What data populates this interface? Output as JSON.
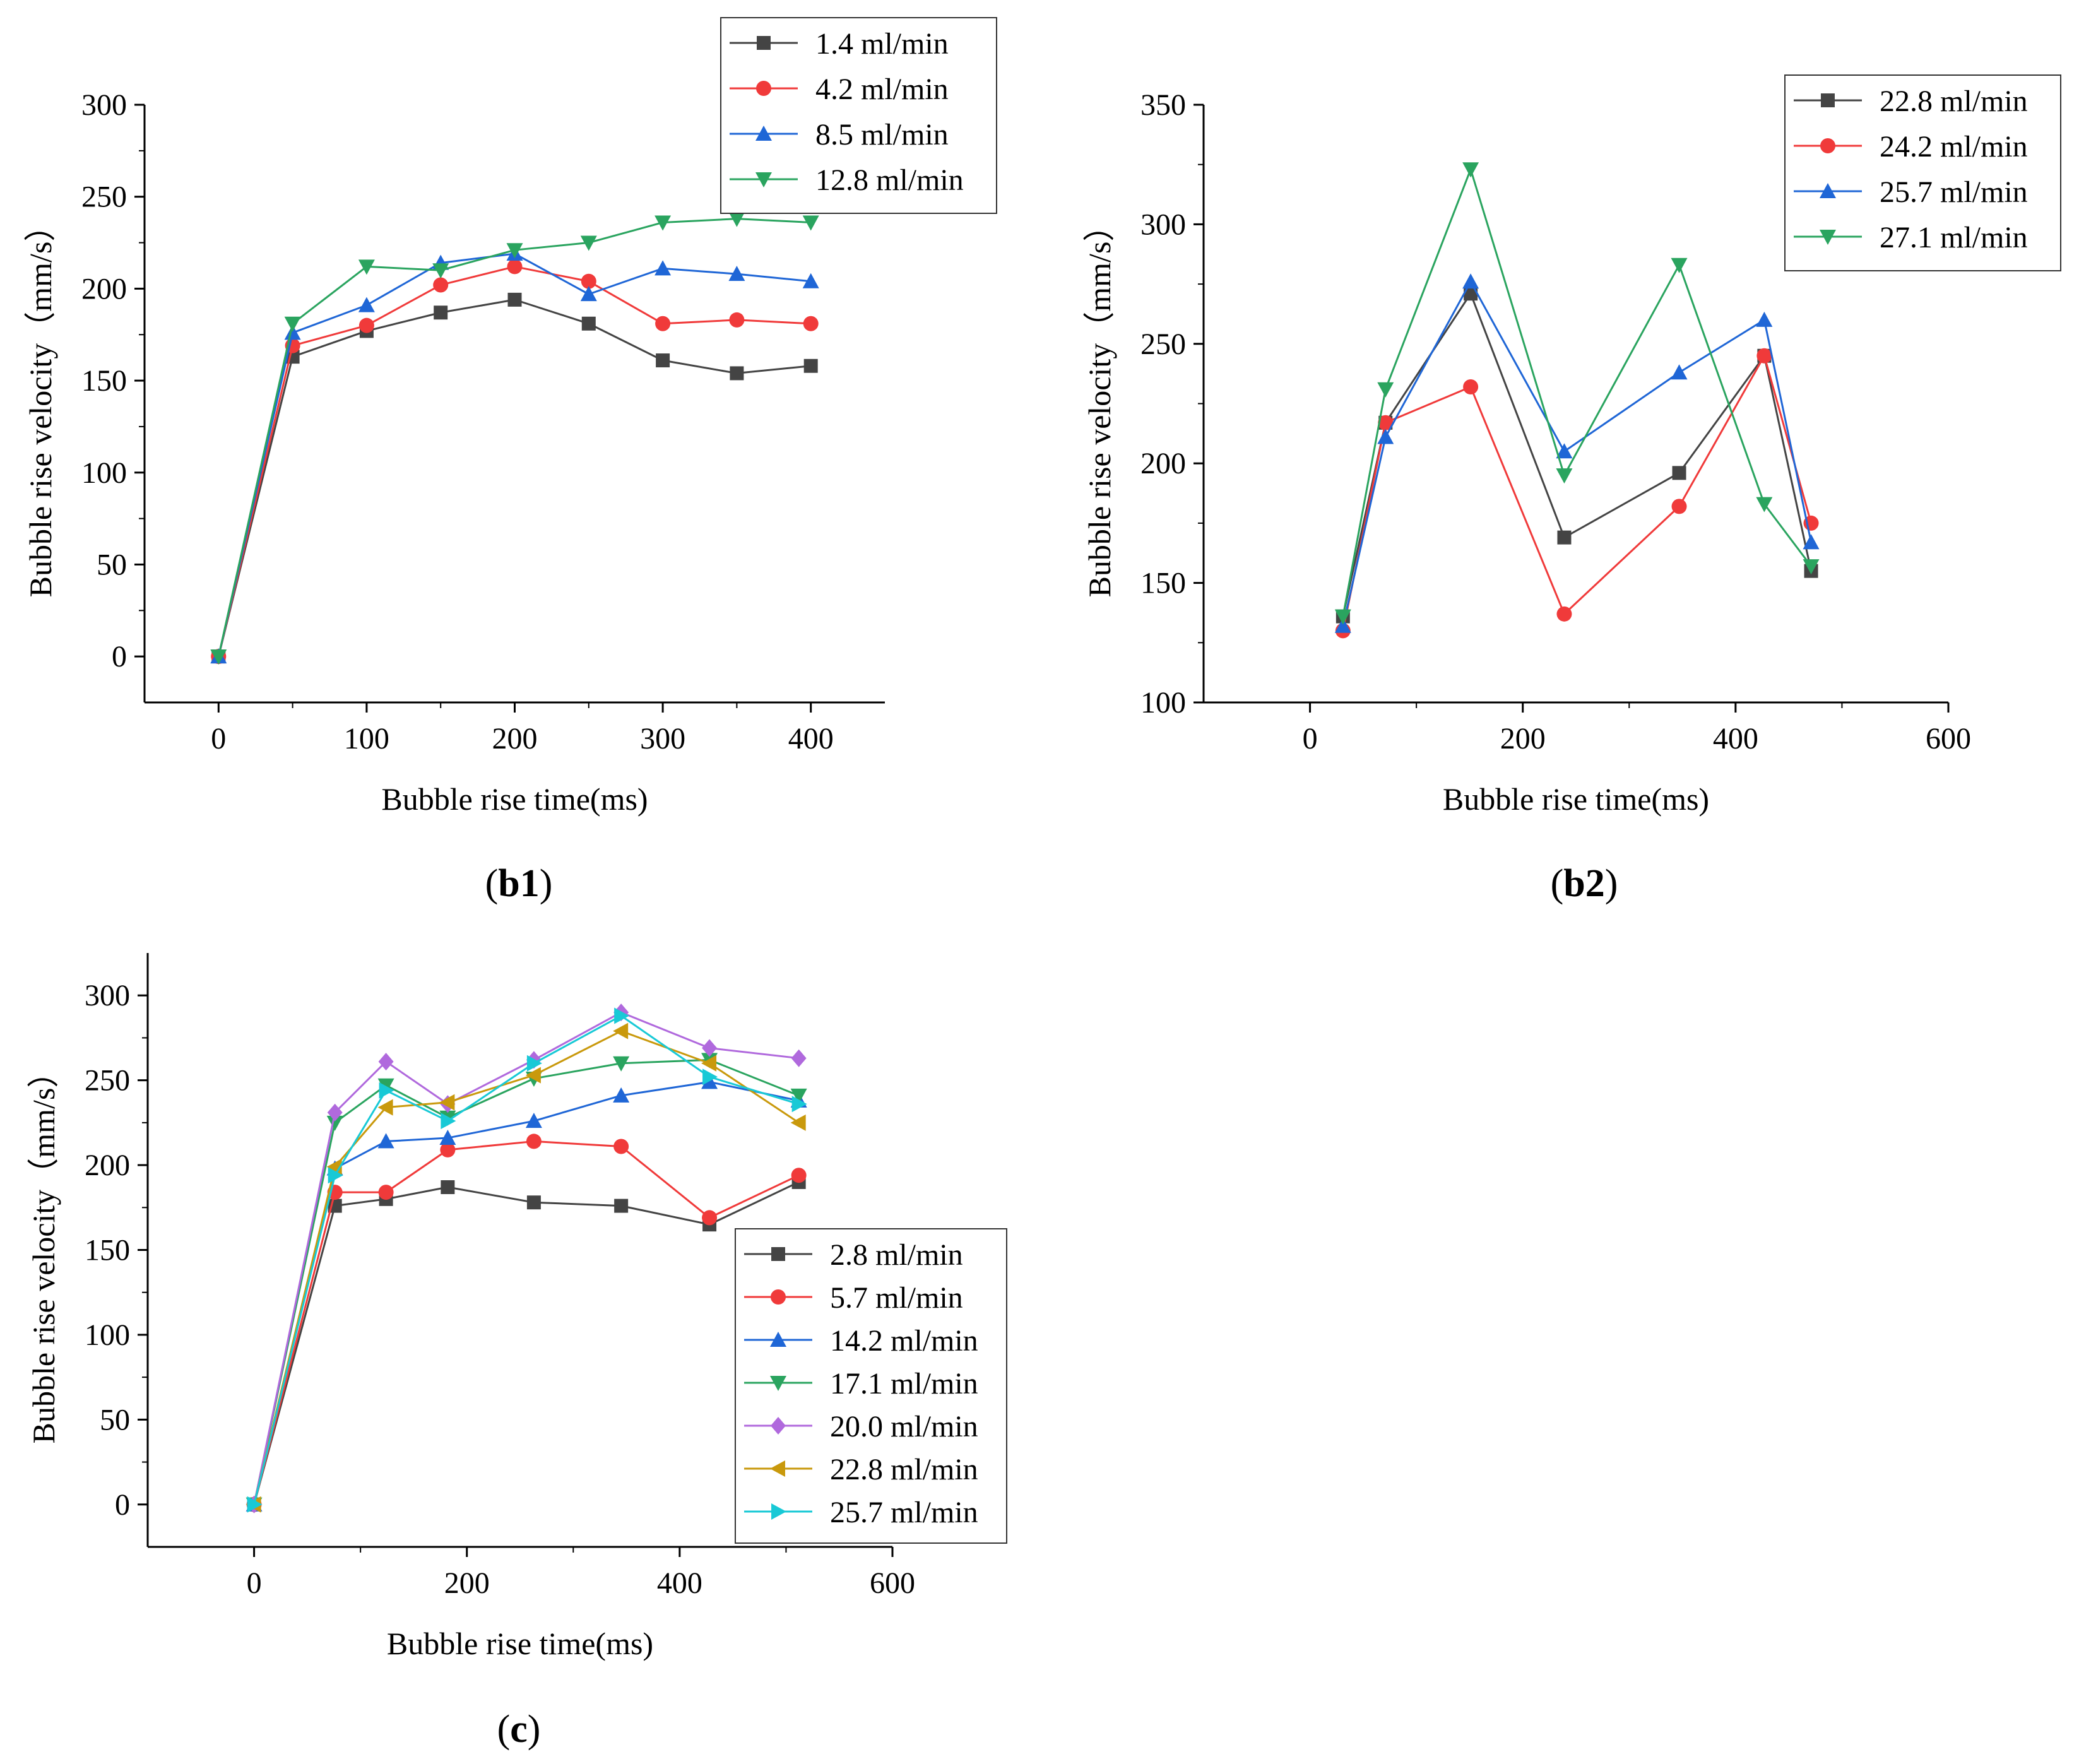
{
  "chart_data": [
    {
      "type": "line",
      "panel_label": "b1",
      "xlabel": "Bubble rise time(ms)",
      "ylabel": "Bubble rise velocity（mm/s）",
      "xlim": [
        -50,
        450
      ],
      "ylim": [
        -25,
        300
      ],
      "xticks": [
        0,
        100,
        200,
        300,
        400
      ],
      "yticks": [
        0,
        50,
        100,
        150,
        200,
        250,
        300
      ],
      "legend_position": "top-right",
      "series": [
        {
          "name": "1.4 ml/min",
          "color": "#444444",
          "marker": "square",
          "x": [
            0,
            50,
            100,
            150,
            200,
            250,
            300,
            350,
            400
          ],
          "y": [
            0,
            163,
            177,
            187,
            194,
            181,
            161,
            154,
            158
          ]
        },
        {
          "name": "4.2 ml/min",
          "color": "#f03a3a",
          "marker": "circle",
          "x": [
            0,
            50,
            100,
            150,
            200,
            250,
            300,
            350,
            400
          ],
          "y": [
            0,
            169,
            180,
            202,
            212,
            204,
            181,
            183,
            181
          ]
        },
        {
          "name": "8.5 ml/min",
          "color": "#1f66d6",
          "marker": "triangle-up",
          "x": [
            0,
            50,
            100,
            150,
            200,
            250,
            300,
            350,
            400
          ],
          "y": [
            0,
            176,
            191,
            214,
            219,
            197,
            211,
            208,
            204
          ]
        },
        {
          "name": "12.8 ml/min",
          "color": "#2aa45f",
          "marker": "triangle-down",
          "x": [
            0,
            50,
            100,
            150,
            200,
            250,
            300,
            350,
            400
          ],
          "y": [
            0,
            181,
            212,
            210,
            221,
            225,
            236,
            238,
            236
          ]
        }
      ]
    },
    {
      "type": "line",
      "panel_label": "b2",
      "xlabel": "Bubble rise time(ms)",
      "ylabel": "Bubble rise velocity（mm/s）",
      "xlim": [
        -100,
        600
      ],
      "ylim": [
        100,
        350
      ],
      "xticks": [
        0,
        200,
        400,
        600
      ],
      "yticks": [
        100,
        150,
        200,
        250,
        300,
        350
      ],
      "legend_position": "top-right",
      "series": [
        {
          "name": "22.8 ml/min",
          "color": "#444444",
          "marker": "square",
          "x": [
            31,
            71,
            151,
            239,
            347,
            427,
            471
          ],
          "y": [
            136,
            217,
            271,
            169,
            196,
            245,
            155
          ]
        },
        {
          "name": "24.2 ml/min",
          "color": "#f03a3a",
          "marker": "circle",
          "x": [
            31,
            71,
            151,
            239,
            347,
            427,
            471
          ],
          "y": [
            130,
            217,
            232,
            137,
            182,
            245,
            175
          ]
        },
        {
          "name": "25.7 ml/min",
          "color": "#1f66d6",
          "marker": "triangle-up",
          "x": [
            31,
            71,
            151,
            239,
            347,
            427,
            471
          ],
          "y": [
            132,
            211,
            276,
            205,
            238,
            260,
            167
          ]
        },
        {
          "name": "27.1 ml/min",
          "color": "#2aa45f",
          "marker": "triangle-down",
          "x": [
            31,
            71,
            151,
            239,
            347,
            427,
            471
          ],
          "y": [
            136,
            231,
            323,
            195,
            283,
            183,
            157
          ]
        }
      ]
    },
    {
      "type": "line",
      "panel_label": "c",
      "xlabel": "Bubble rise time(ms)",
      "ylabel": "Bubble rise velocity（mm/s）",
      "xlim": [
        -100,
        600
      ],
      "ylim": [
        -25,
        325
      ],
      "xticks": [
        0,
        200,
        400,
        600
      ],
      "yticks": [
        0,
        50,
        100,
        150,
        200,
        250,
        300
      ],
      "legend_position": "bottom-right",
      "series": [
        {
          "name": "2.8 ml/min",
          "color": "#444444",
          "marker": "square",
          "x": [
            0,
            76,
            124,
            182,
            263,
            345,
            428,
            512
          ],
          "y": [
            0,
            176,
            180,
            187,
            178,
            176,
            165,
            190
          ]
        },
        {
          "name": "5.7 ml/min",
          "color": "#f03a3a",
          "marker": "circle",
          "x": [
            0,
            76,
            124,
            182,
            263,
            345,
            428,
            512
          ],
          "y": [
            0,
            184,
            184,
            209,
            214,
            211,
            169,
            194
          ]
        },
        {
          "name": "14.2 ml/min",
          "color": "#1f66d6",
          "marker": "triangle-up",
          "x": [
            0,
            76,
            124,
            182,
            263,
            345,
            428,
            512
          ],
          "y": [
            0,
            198,
            214,
            216,
            226,
            241,
            249,
            238
          ]
        },
        {
          "name": "17.1 ml/min",
          "color": "#2aa45f",
          "marker": "triangle-down",
          "x": [
            0,
            76,
            124,
            182,
            263,
            345,
            428,
            512
          ],
          "y": [
            0,
            225,
            247,
            228,
            251,
            260,
            262,
            241
          ]
        },
        {
          "name": "20.0 ml/min",
          "color": "#b069dd",
          "marker": "diamond",
          "x": [
            0,
            76,
            124,
            182,
            263,
            345,
            428,
            512
          ],
          "y": [
            0,
            231,
            261,
            236,
            262,
            290,
            269,
            263
          ]
        },
        {
          "name": "22.8 ml/min",
          "color": "#c9990c",
          "marker": "triangle-left",
          "x": [
            0,
            76,
            124,
            182,
            263,
            345,
            428,
            512
          ],
          "y": [
            0,
            199,
            234,
            237,
            253,
            279,
            260,
            225
          ]
        },
        {
          "name": "25.7 ml/min",
          "color": "#18c9d6",
          "marker": "triangle-right",
          "x": [
            0,
            76,
            124,
            182,
            263,
            345,
            428,
            512
          ],
          "y": [
            0,
            194,
            244,
            226,
            260,
            288,
            252,
            236
          ]
        }
      ]
    }
  ]
}
